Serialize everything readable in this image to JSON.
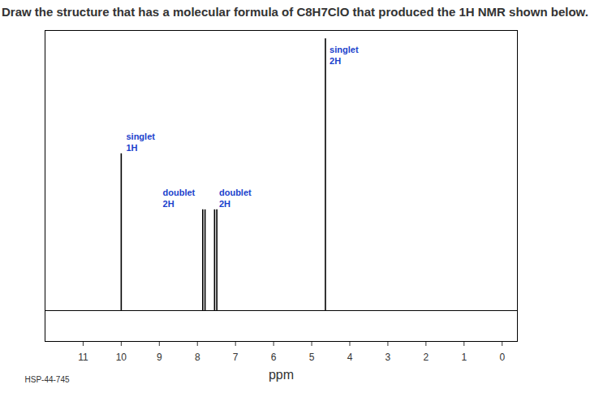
{
  "chart_data": {
    "type": "spectrum",
    "title": "Draw the structure that has a molecular formula of C8H7ClO that produced the 1H NMR shown below.",
    "x_label": "ppm",
    "code_label": "HSP-44-745",
    "x": [
      10.0,
      7.86,
      7.8,
      7.55,
      7.49,
      4.64
    ],
    "values": [
      0.56,
      0.36,
      0.36,
      0.36,
      0.36,
      0.97
    ],
    "color": "#000000",
    "xlim": [
      12,
      -0.4
    ],
    "xticks": [
      0,
      1,
      2,
      3,
      4,
      5,
      6,
      7,
      8,
      9,
      10,
      11
    ],
    "ylim": [
      -0.11,
      1
    ],
    "tick_labels": "x",
    "grid": false,
    "annotations": [
      {
        "text": "singlet\n1H",
        "x": 9.87,
        "y": 0.57,
        "color": "#1a3fcc"
      },
      {
        "text": "doublet\n2H",
        "x": 8.91,
        "y": 0.37,
        "color": "#1a3fcc"
      },
      {
        "text": "doublet\n2H",
        "x": 7.43,
        "y": 0.37,
        "color": "#1a3fcc"
      },
      {
        "text": "singlet\n2H",
        "x": 4.53,
        "y": 0.88,
        "color": "#1a3fcc"
      }
    ]
  }
}
